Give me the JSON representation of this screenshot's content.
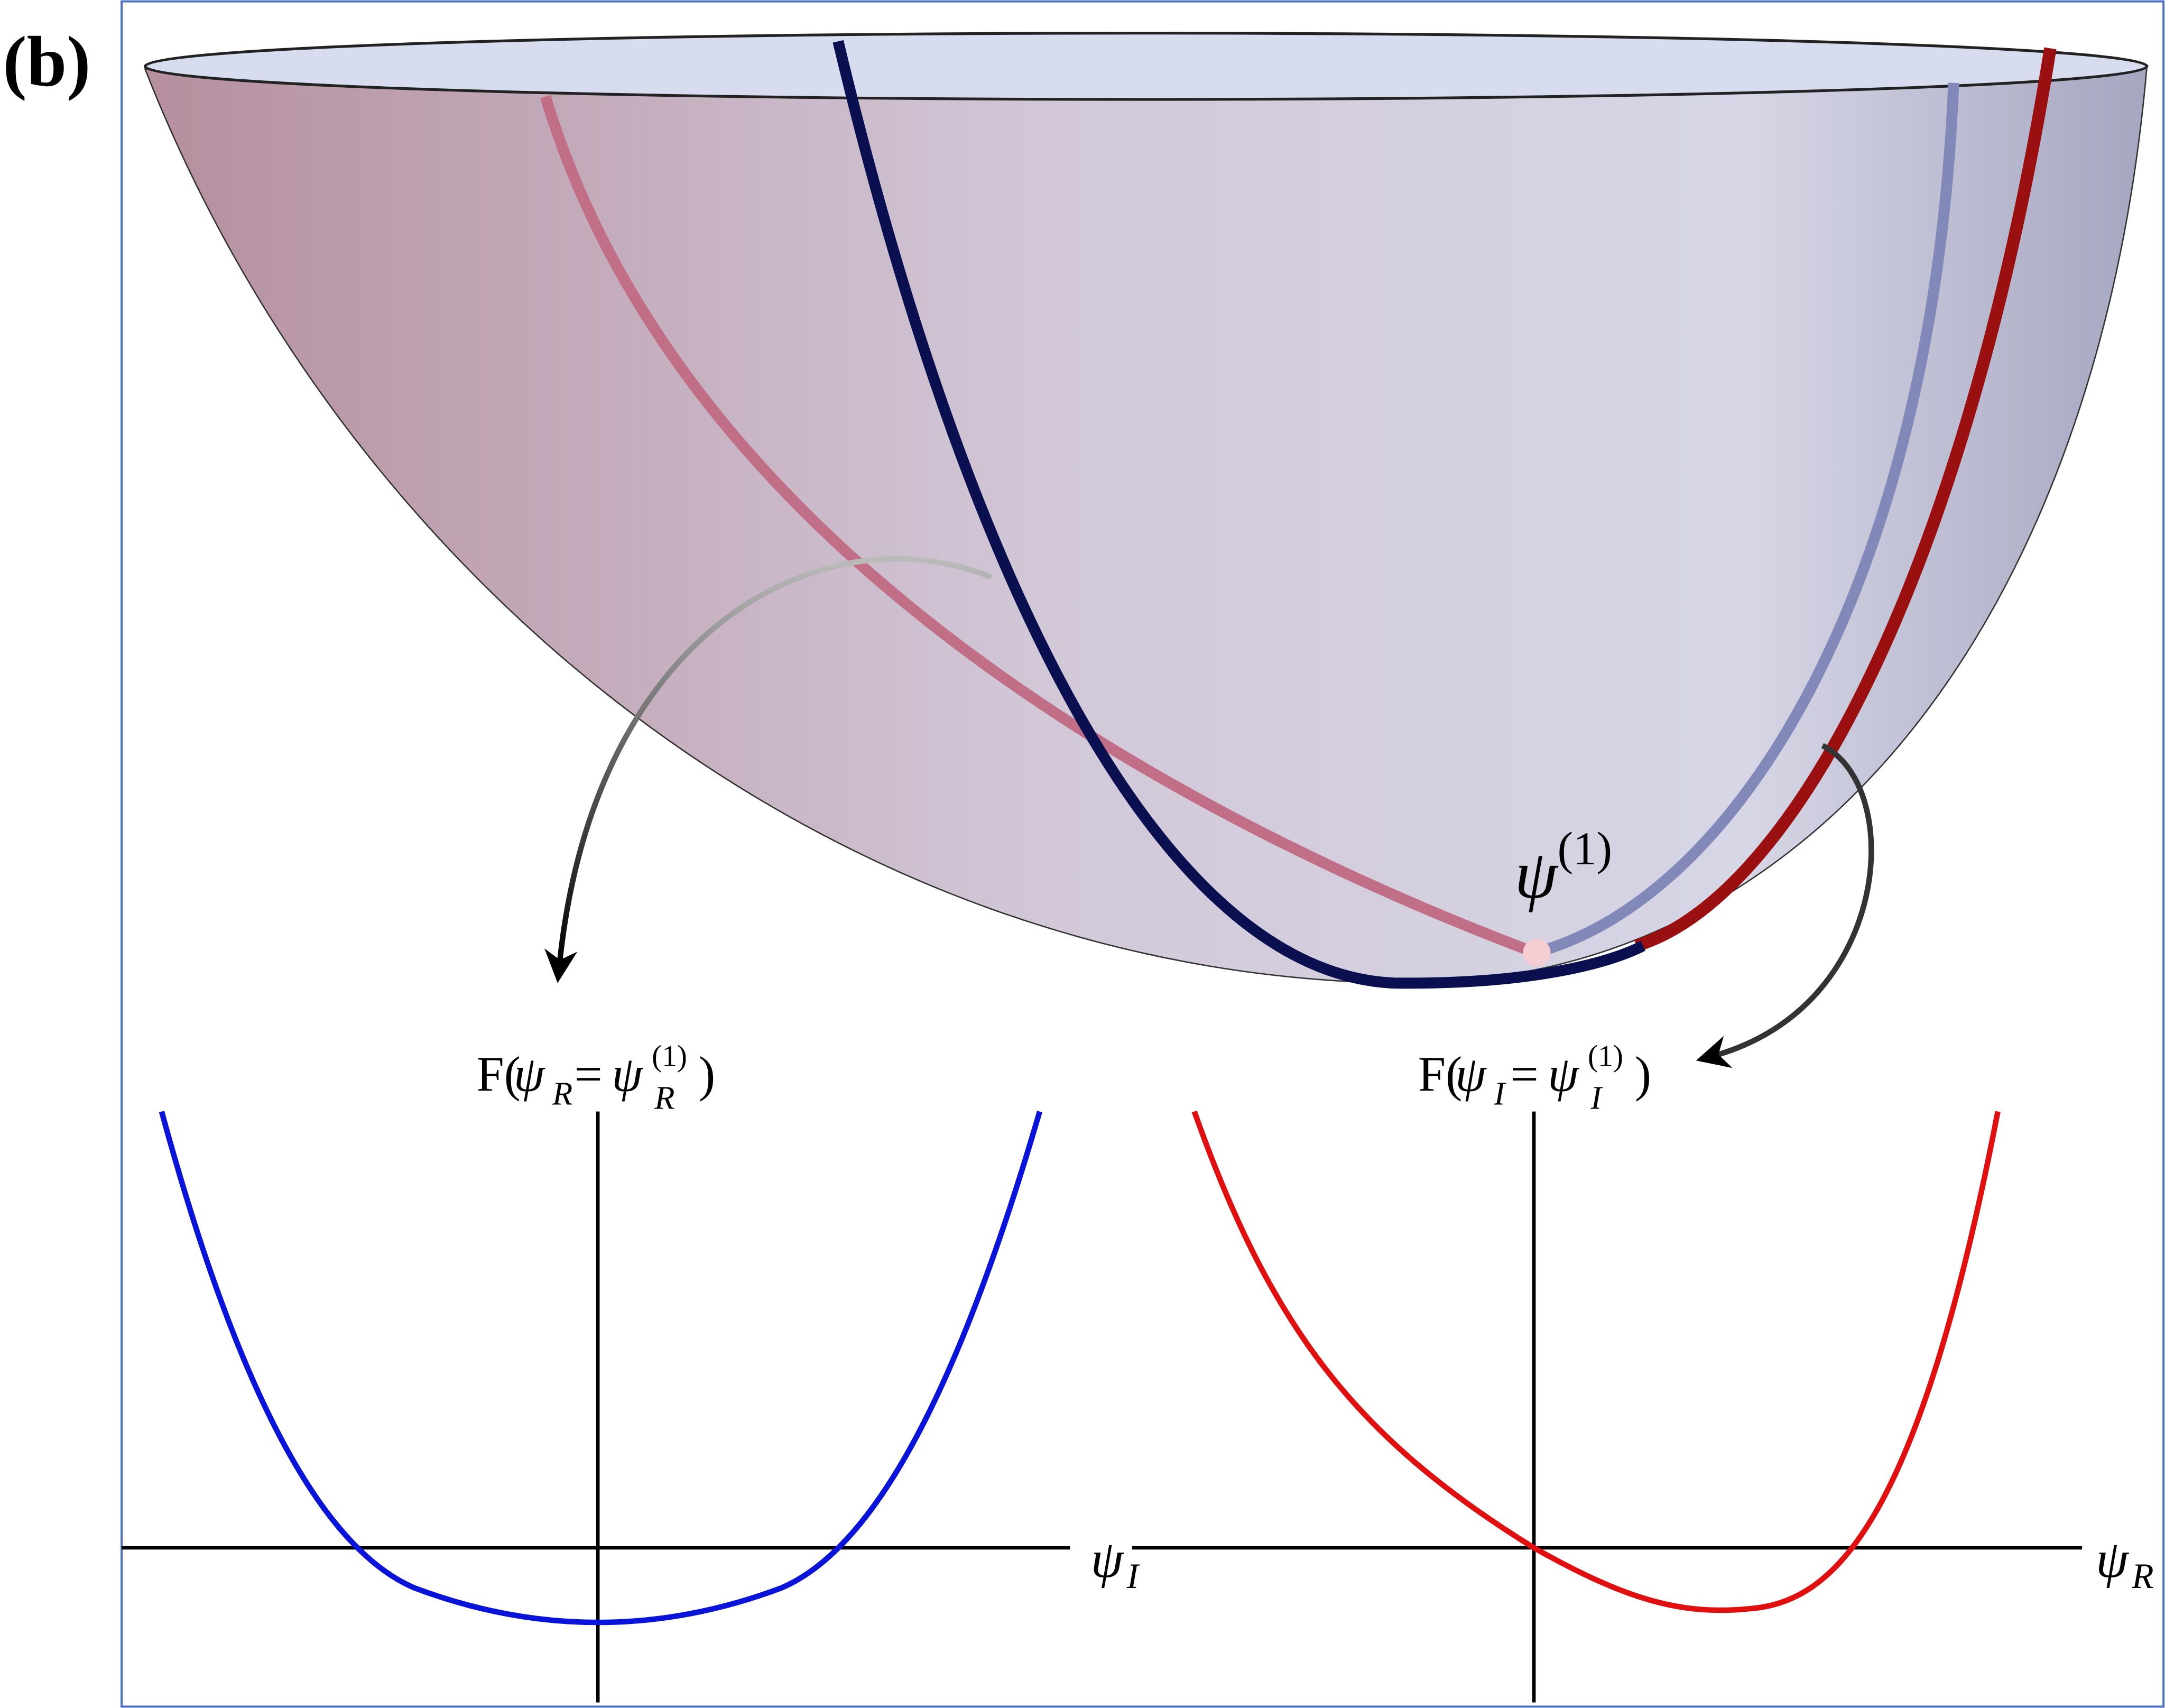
{
  "panel_label": "(b)",
  "point_label": {
    "symbol": "ψ",
    "superscript": "(1)"
  },
  "left_plot": {
    "title": [
      "F(",
      "ψ",
      "R",
      "=",
      "ψ",
      "R",
      "(1)",
      ")"
    ],
    "x_axis_label": {
      "symbol": "ψ",
      "subscript": "I"
    }
  },
  "right_plot": {
    "title": [
      "F(",
      "ψ",
      "I",
      "=",
      "ψ",
      "I",
      "(1)",
      ")"
    ],
    "x_axis_label": {
      "symbol": "ψ",
      "subscript": "R"
    }
  }
}
